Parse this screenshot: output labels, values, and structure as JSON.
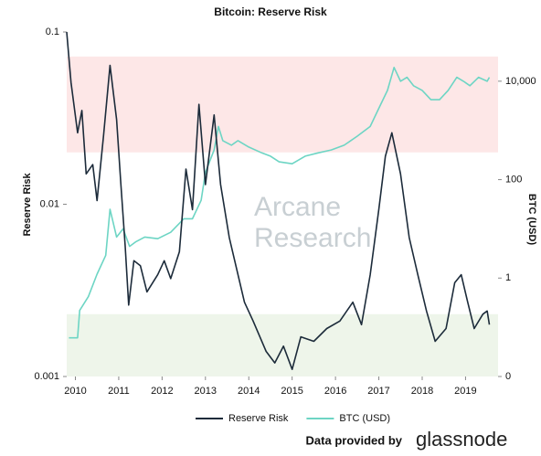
{
  "chart_data": {
    "type": "line",
    "title": "Bitcoin: Reserve Risk",
    "y_label": "Reserve Risk",
    "y2_label": "BTC (USD)",
    "watermark": [
      "Arcane",
      "Research"
    ],
    "credit": "Data provided by",
    "credit_brand": "glassnode",
    "ylog": true,
    "y2log": true,
    "xlim": [
      2009.8,
      2019.75
    ],
    "xticks": [
      2010,
      2011,
      2012,
      2013,
      2014,
      2015,
      2016,
      2017,
      2018,
      2019
    ],
    "ylim": [
      0.001,
      0.1
    ],
    "yticks": [
      0.1,
      0.01,
      0.001
    ],
    "y2lim": [
      0.01,
      100000
    ],
    "y2ticks": [
      {
        "value": 0.01,
        "label": "0"
      },
      1,
      100,
      {
        "value": 10000,
        "label": "10,000"
      }
    ],
    "bands": [
      {
        "from": 0.02,
        "to": 0.072,
        "color": "#fde7e7"
      },
      {
        "from": 0.001,
        "to": 0.0023,
        "color": "#eef5ea"
      }
    ],
    "legend": "bottom",
    "series": [
      {
        "name": "Reserve Risk",
        "color": "#1c2b3a",
        "axis": "y",
        "x": [
          2009.8,
          2009.9,
          2010.05,
          2010.15,
          2010.25,
          2010.4,
          2010.5,
          2010.65,
          2010.8,
          2010.95,
          2011.05,
          2011.15,
          2011.23,
          2011.35,
          2011.5,
          2011.65,
          2011.9,
          2012.05,
          2012.2,
          2012.4,
          2012.55,
          2012.7,
          2012.85,
          2013.0,
          2013.2,
          2013.35,
          2013.55,
          2013.9,
          2014.1,
          2014.4,
          2014.6,
          2014.8,
          2015.0,
          2015.2,
          2015.5,
          2015.8,
          2016.1,
          2016.4,
          2016.6,
          2016.8,
          2017.0,
          2017.15,
          2017.3,
          2017.5,
          2017.7,
          2017.9,
          2018.1,
          2018.3,
          2018.55,
          2018.75,
          2018.9,
          2019.05,
          2019.2,
          2019.4,
          2019.5,
          2019.55
        ],
        "values": [
          0.1,
          0.051,
          0.026,
          0.035,
          0.015,
          0.017,
          0.0105,
          0.025,
          0.064,
          0.031,
          0.013,
          0.0057,
          0.0026,
          0.0047,
          0.0044,
          0.0031,
          0.0039,
          0.0047,
          0.0037,
          0.0053,
          0.016,
          0.0093,
          0.038,
          0.013,
          0.033,
          0.013,
          0.0064,
          0.0027,
          0.0021,
          0.0014,
          0.0012,
          0.0015,
          0.0011,
          0.0017,
          0.0016,
          0.0019,
          0.0021,
          0.0027,
          0.002,
          0.0039,
          0.0093,
          0.019,
          0.026,
          0.015,
          0.0064,
          0.0039,
          0.0024,
          0.0016,
          0.0019,
          0.0035,
          0.0039,
          0.0027,
          0.0019,
          0.0023,
          0.0024,
          0.002
        ]
      },
      {
        "name": "BTC (USD)",
        "color": "#6dd5c4",
        "axis": "y2",
        "x": [
          2009.85,
          2010.05,
          2010.1,
          2010.3,
          2010.5,
          2010.7,
          2010.8,
          2010.95,
          2011.1,
          2011.25,
          2011.4,
          2011.6,
          2011.9,
          2012.2,
          2012.5,
          2012.7,
          2012.9,
          2013.0,
          2013.2,
          2013.3,
          2013.4,
          2013.6,
          2013.75,
          2014.0,
          2014.3,
          2014.5,
          2014.7,
          2015.0,
          2015.3,
          2015.6,
          2015.9,
          2016.2,
          2016.5,
          2016.8,
          2017.0,
          2017.2,
          2017.35,
          2017.5,
          2017.65,
          2017.8,
          2018.0,
          2018.2,
          2018.4,
          2018.6,
          2018.8,
          2018.95,
          2019.1,
          2019.3,
          2019.5,
          2019.55
        ],
        "values": [
          0.061,
          0.061,
          0.22,
          0.42,
          1.2,
          2.9,
          25,
          6.8,
          10,
          4.4,
          5.5,
          6.8,
          6.3,
          8.5,
          16,
          16,
          38,
          140,
          400,
          1200,
          620,
          500,
          620,
          460,
          350,
          300,
          230,
          210,
          300,
          350,
          400,
          500,
          760,
          1200,
          2800,
          6500,
          19000,
          10000,
          12000,
          8100,
          6500,
          4200,
          4200,
          6500,
          12000,
          10000,
          8100,
          12000,
          10000,
          12000
        ]
      }
    ]
  }
}
